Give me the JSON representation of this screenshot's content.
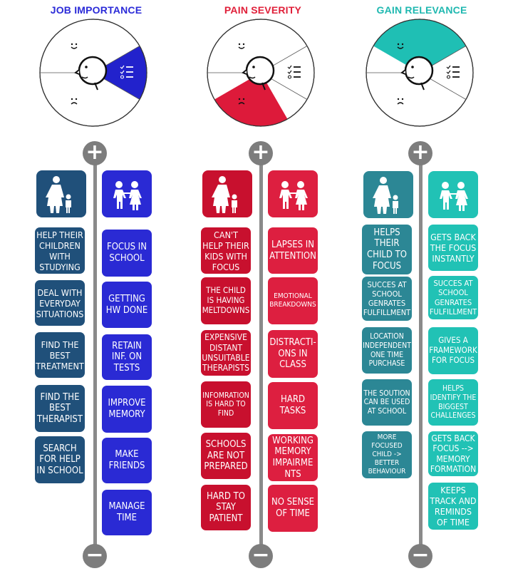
{
  "columns": [
    {
      "title": "JOB IMPORTANCE",
      "title_color": "#2b2bd8",
      "wheel_fill": "#2222cc",
      "parent_color": "#20507a",
      "child_color": "#2a2ad4",
      "parent_icon": "parent-with-child-icon",
      "child_icon": "two-children-icon",
      "parent_items": [
        "HELP THEIR CHILDREN WITH STUDYING",
        "DEAL WITH EVERYDAY SITUATIONS",
        "FIND THE BEST TREATMENT",
        "FIND THE BEST THERAPIST",
        "SEARCH FOR HELP IN SCHOOL"
      ],
      "child_items": [
        "FOCUS IN SCHOOL",
        "GETTING HW DONE",
        "RETAIN INF. ON TESTS",
        "IMPROVE MEMORY",
        "MAKE FRIENDS",
        "MANAGE TIME"
      ]
    },
    {
      "title": "PAIN SEVERITY",
      "title_color": "#e0203a",
      "wheel_fill": "#dd1a3a",
      "parent_color": "#c8102e",
      "child_color": "#dd1f40",
      "parent_icon": "parent-with-child-icon",
      "child_icon": "two-children-icon",
      "parent_items": [
        "CAN'T HELP THEIR KIDS WITH FOCUS",
        "THE CHILD IS HAVING MELTDOWNS",
        "EXPENSIVE DISTANT UNSUITABLE THERAPISTS",
        "INFOMRATION IS HARD TO FIND",
        "SCHOOLS ARE NOT PREPARED",
        "HARD TO STAY PATIENT"
      ],
      "child_items": [
        "LAPSES IN ATTENTION",
        "EMOTIONAL BREAKDOWNS",
        "DISTRACTI-ONS IN CLASS",
        "HARD TASKS",
        "WORKING MEMORY IMPAIRME NTS",
        "NO SENSE OF TIME"
      ]
    },
    {
      "title": "GAIN RELEVANCE",
      "title_color": "#1fb8b0",
      "wheel_fill": "#1fbfb4",
      "parent_color": "#2c8795",
      "child_color": "#21c2b5",
      "parent_icon": "parent-with-child-icon",
      "child_icon": "two-children-icon",
      "parent_items": [
        "HELPS THEIR CHILD TO FOCUS",
        "SUCCES AT SCHOOL GENRATES FULFILLMENT",
        "LOCATION INDEPENDENT ONE TIME PURCHASE",
        "THE SOUTION CAN BE USED AT SCHOOL",
        "MORE FOCUSED CHILD -> BETTER BEHAVIOUR"
      ],
      "child_items": [
        "GETS BACK THE FOCUS INSTANTLY",
        "SUCCES AT SCHOOL GENRATES FULFILLMENT",
        "GIVES A FRAMEWORK FOR FOCUS",
        "HELPS IDENTIFY THE BIGGEST CHALLENGES",
        "GETS BACK FOCUS --> MEMORY FORMATION",
        "KEEPS TRACK AND REMINDS OF TIME"
      ]
    }
  ],
  "axis": {
    "top_symbol": "+",
    "bottom_symbol": "−"
  },
  "wheel_icons": [
    "smile-face-icon",
    "frown-face-icon",
    "checklist-icon",
    "person-head-icon"
  ]
}
